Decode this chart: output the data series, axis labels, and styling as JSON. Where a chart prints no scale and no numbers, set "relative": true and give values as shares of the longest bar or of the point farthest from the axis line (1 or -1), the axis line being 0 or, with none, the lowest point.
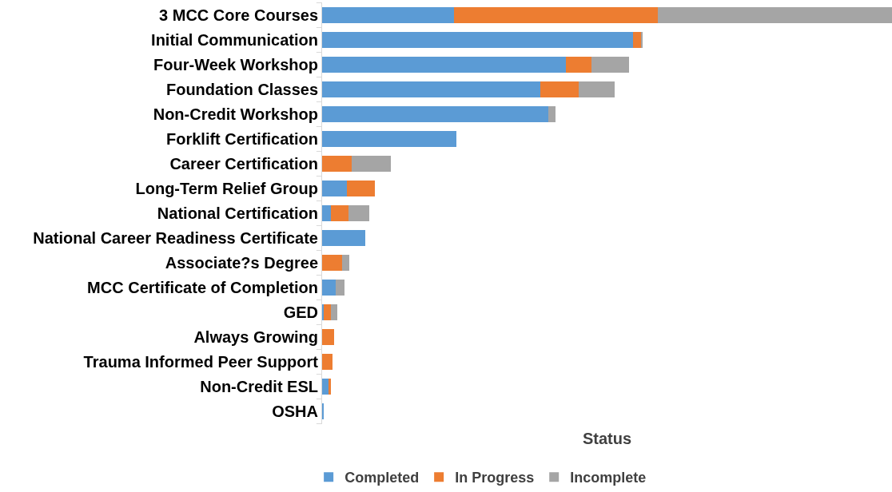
{
  "chart_data": {
    "type": "bar",
    "orientation": "horizontal",
    "stacked": true,
    "relative": true,
    "xlabel": "Status",
    "legend": "bottom",
    "categories": [
      "3 MCC Core Courses",
      "Initial Communication",
      "Four-Week Workshop",
      "Foundation Classes",
      "Non-Credit Workshop",
      "Forklift Certification",
      "Career Certification",
      "Long-Term Relief Group",
      "National Certification",
      "National Career Readiness Certificate",
      "Associate?s Degree",
      "MCC Certificate of Completion",
      "GED",
      "Always Growing",
      "Trauma Informed Peer Support",
      "Non-Credit ESL",
      "OSHA"
    ],
    "series": [
      {
        "name": "Completed",
        "color": "#5b9bd5",
        "values": [
          0.232,
          0.545,
          0.428,
          0.383,
          0.397,
          0.236,
          0,
          0.044,
          0.015,
          0.076,
          0,
          0.024,
          0.003,
          0,
          0,
          0.011,
          0.002
        ]
      },
      {
        "name": "In Progress",
        "color": "#ed7d31",
        "values": [
          0.357,
          0.014,
          0.044,
          0.067,
          null,
          0,
          0.052,
          0.048,
          0.031,
          0,
          0.035,
          0,
          0.013,
          0.021,
          0.018,
          0.004,
          0
        ]
      },
      {
        "name": "Incomplete",
        "color": "#a5a5a5",
        "values": [
          0.411,
          0.003,
          0.066,
          0.063,
          0.013,
          0,
          0.069,
          0,
          0.037,
          0,
          0.013,
          0.015,
          0.01,
          0,
          0,
          0,
          0
        ]
      }
    ]
  }
}
